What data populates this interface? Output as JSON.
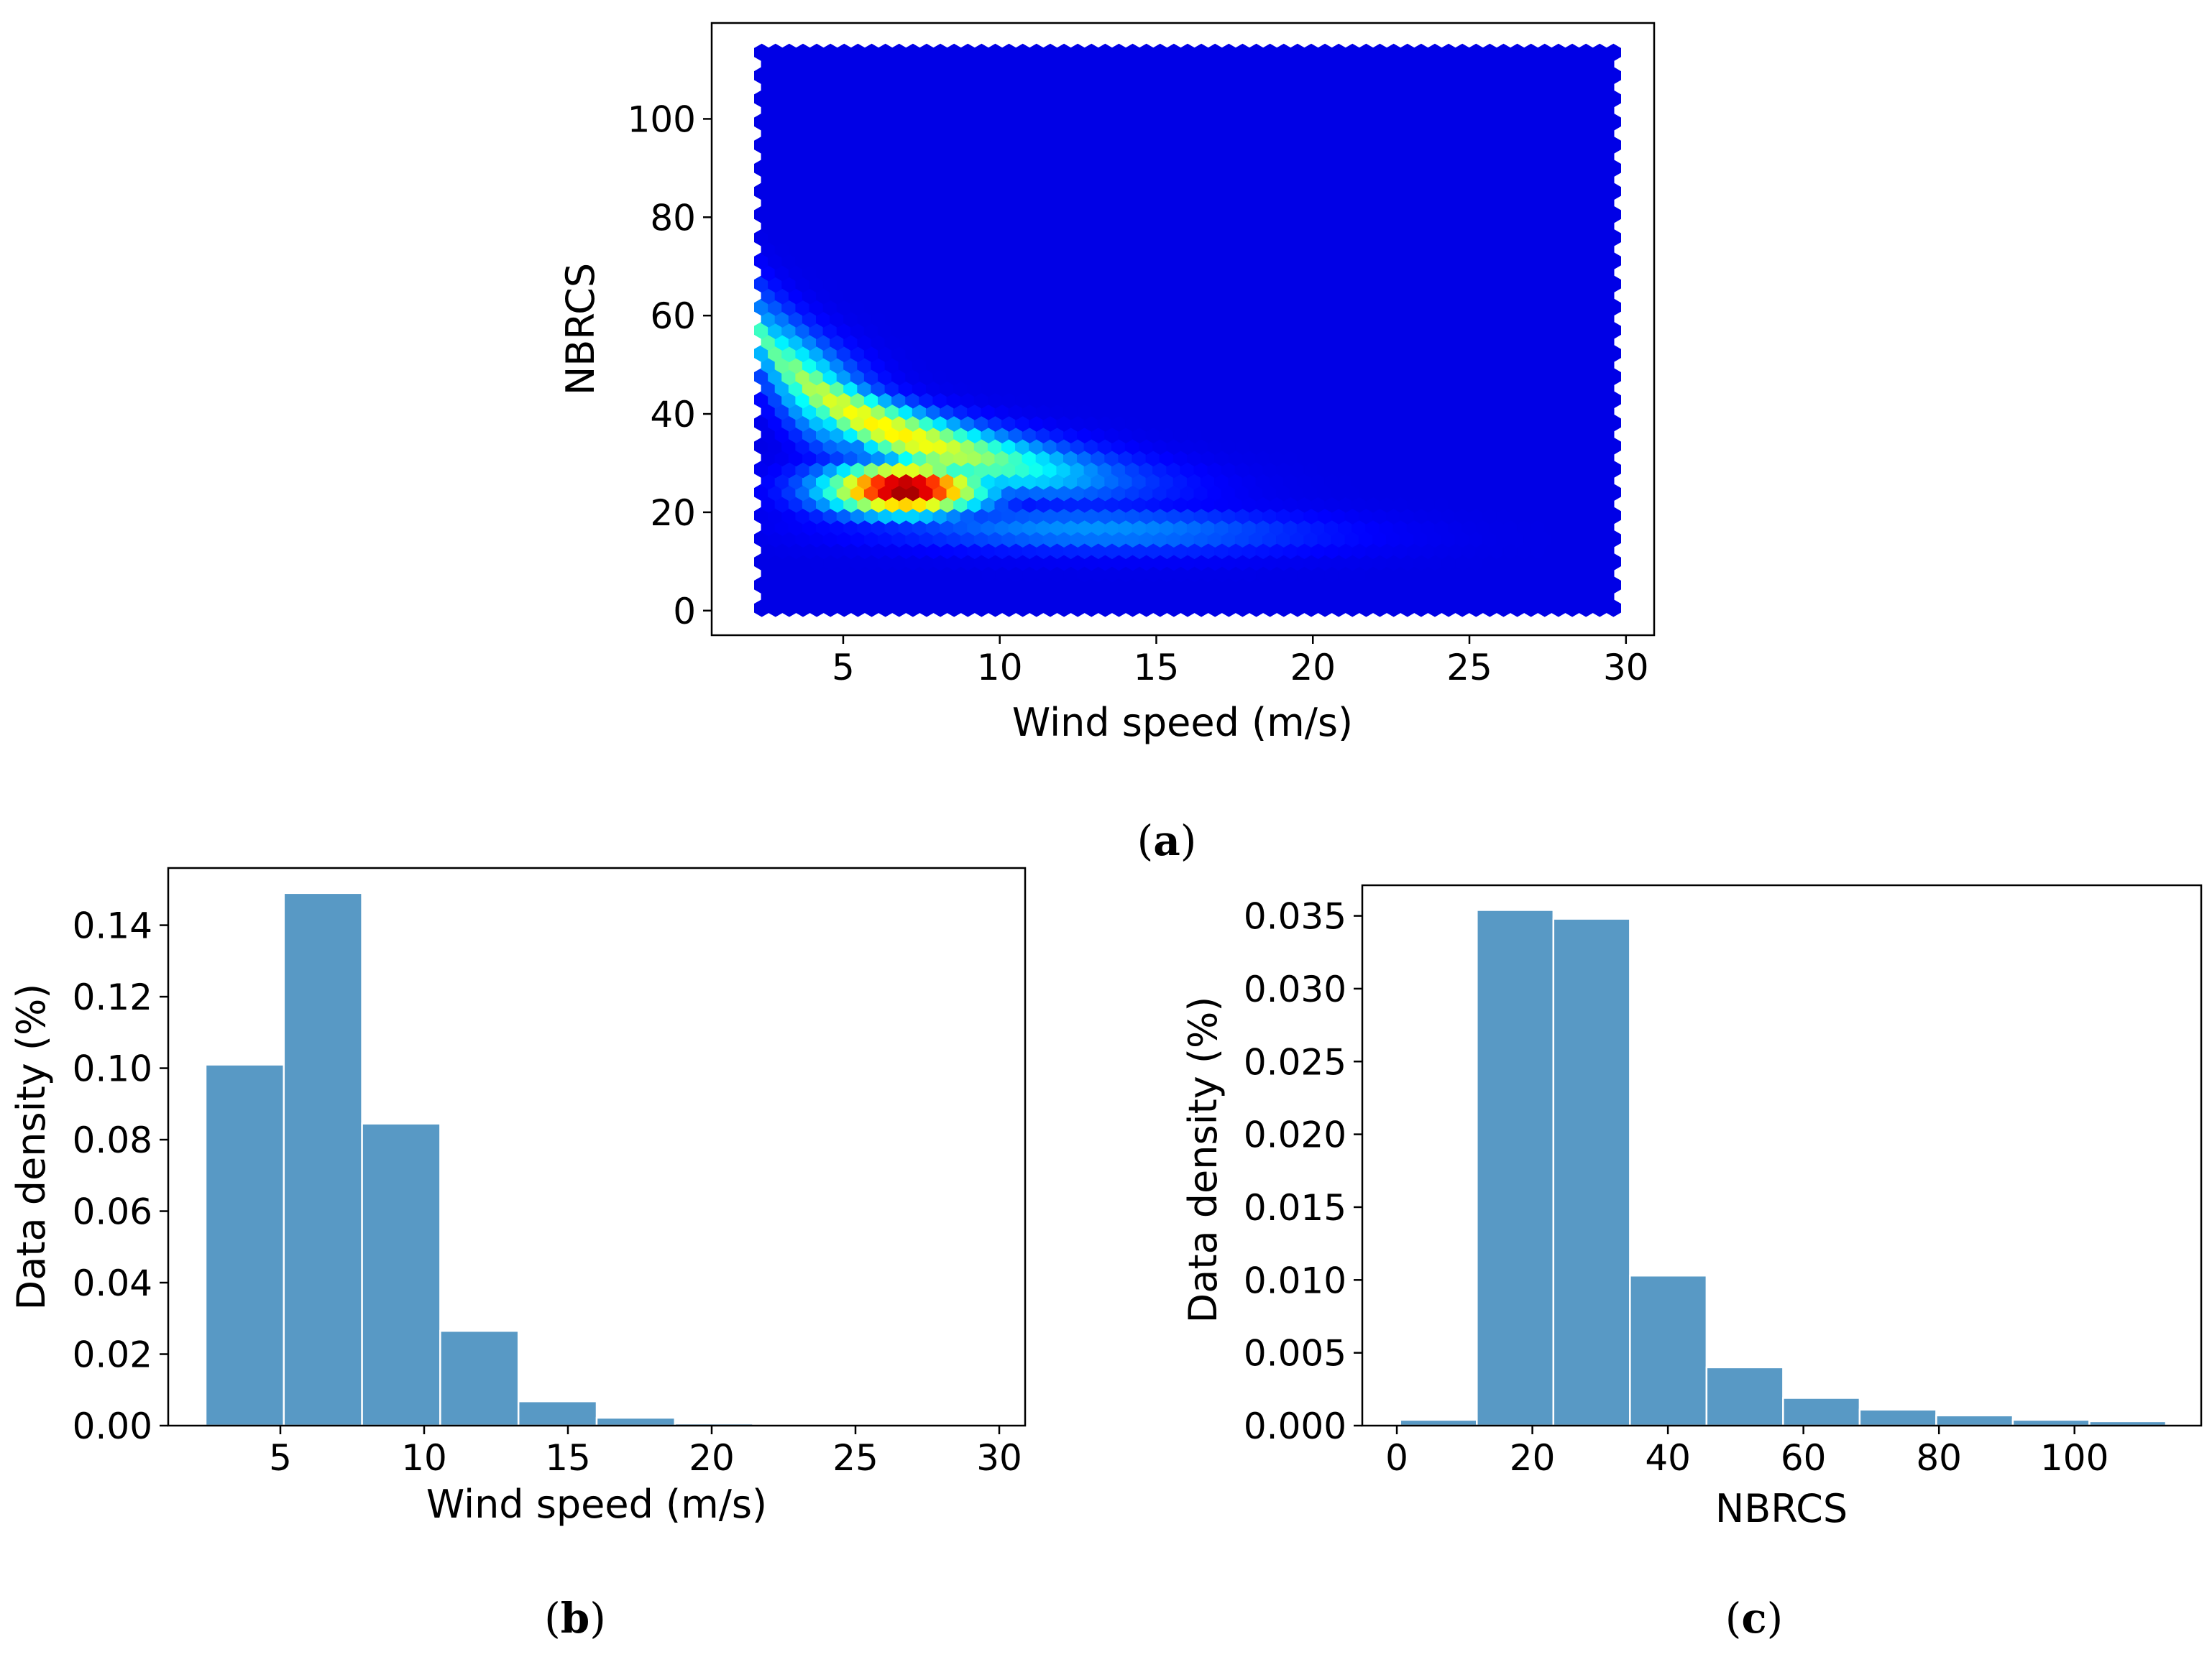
{
  "chart_data": [
    {
      "panel": "(a)",
      "panel_letter": "a",
      "type": "heatmap",
      "subtype": "hexbin",
      "colormap": "jet",
      "xlabel": "Wind speed (m/s)",
      "ylabel": "NBRCS",
      "xlim": [
        2.4,
        29.6
      ],
      "ylim": [
        0.5,
        113.5
      ],
      "view_xlim": [
        0.8,
        30.9
      ],
      "view_ylim": [
        -5,
        119.5
      ],
      "xticks": [
        5,
        10,
        15,
        20,
        25,
        30
      ],
      "yticks": [
        0,
        20,
        40,
        60,
        80,
        100
      ],
      "density_peak": {
        "x": 7,
        "y": 25
      },
      "density_ridge": [
        [
          3.5,
          45
        ],
        [
          5,
          30
        ],
        [
          7,
          25
        ],
        [
          9,
          21
        ],
        [
          12,
          18
        ],
        [
          16,
          16
        ],
        [
          20,
          14
        ]
      ]
    },
    {
      "panel": "(b)",
      "panel_letter": "b",
      "type": "bar",
      "subtype": "histogram",
      "color": "#5899c5",
      "xlabel": "Wind speed (m/s)",
      "ylabel": "Data density (%)",
      "xlim": [
        1.1,
        30.9
      ],
      "ylim": [
        0,
        0.156
      ],
      "xticks": [
        5,
        10,
        15,
        20,
        25,
        30
      ],
      "yticks": [
        0.0,
        0.02,
        0.04,
        0.06,
        0.08,
        0.1,
        0.12,
        0.14
      ],
      "ytick_labels": [
        "0.00",
        "0.02",
        "0.04",
        "0.06",
        "0.08",
        "0.10",
        "0.12",
        "0.14"
      ],
      "bin_edges": [
        2.4,
        5.12,
        7.84,
        10.56,
        13.28,
        16.0,
        18.72,
        21.44,
        24.16,
        26.88,
        29.6
      ],
      "values": [
        0.101,
        0.149,
        0.0845,
        0.0265,
        0.0068,
        0.0022,
        0.0006,
        0.0002,
        0.0001,
        0.0001
      ]
    },
    {
      "panel": "(c)",
      "panel_letter": "c",
      "type": "bar",
      "subtype": "histogram",
      "color": "#5899c5",
      "xlabel": "NBRCS",
      "ylabel": "Data density (%)",
      "xlim": [
        -5.1,
        118.7
      ],
      "ylim": [
        0,
        0.0371
      ],
      "xticks": [
        0,
        20,
        40,
        60,
        80,
        100
      ],
      "yticks": [
        0.0,
        0.005,
        0.01,
        0.015,
        0.02,
        0.025,
        0.03,
        0.035
      ],
      "ytick_labels": [
        "0.000",
        "0.005",
        "0.010",
        "0.015",
        "0.020",
        "0.025",
        "0.030",
        "0.035"
      ],
      "bin_edges": [
        0.5,
        11.8,
        23.1,
        34.4,
        45.7,
        57.0,
        68.3,
        79.6,
        90.9,
        102.2,
        113.5
      ],
      "values": [
        0.0004,
        0.0354,
        0.0348,
        0.0103,
        0.004,
        0.0019,
        0.0011,
        0.0007,
        0.0004,
        0.0003
      ]
    }
  ]
}
